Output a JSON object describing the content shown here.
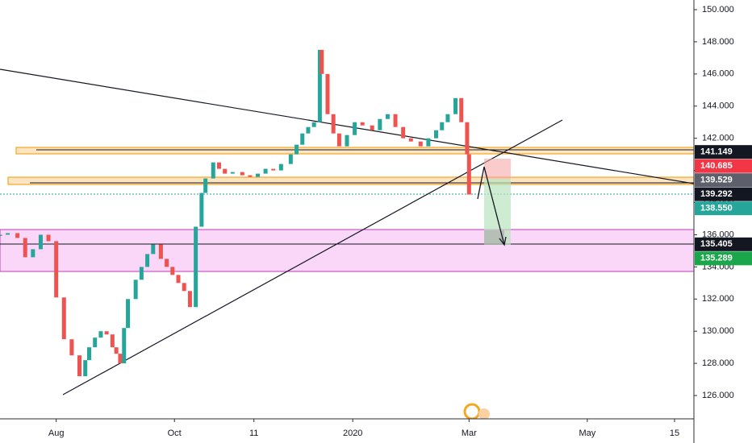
{
  "chart_data": {
    "type": "candlestick",
    "x": [
      -29,
      -25,
      -20,
      -16,
      -12,
      -8,
      -4,
      0,
      4,
      8,
      12,
      15,
      17,
      20,
      23,
      26,
      29,
      31,
      33,
      35,
      37,
      41,
      44,
      47,
      50,
      54,
      57,
      60,
      63,
      66,
      69,
      72,
      75,
      77,
      81,
      84,
      87,
      91,
      96,
      100,
      104,
      108,
      112,
      116,
      121,
      124,
      127,
      130,
      133,
      136,
      137,
      140,
      143,
      146,
      150,
      154,
      158,
      163,
      167,
      171,
      175,
      179,
      183,
      188,
      192,
      196,
      199,
      202,
      206,
      209,
      212,
      213
    ],
    "values": [
      136.0,
      136.1,
      135.8,
      134.6,
      135.1,
      136.0,
      135.6,
      132.1,
      129.5,
      128.5,
      127.2,
      128.2,
      129.0,
      129.6,
      130.0,
      129.8,
      129.0,
      128.6,
      128.0,
      130.2,
      132.0,
      133.2,
      134.0,
      134.8,
      135.4,
      134.5,
      134.0,
      133.5,
      133.0,
      132.5,
      131.5,
      136.5,
      138.6,
      139.5,
      140.5,
      140.1,
      139.8,
      139.9,
      139.7,
      139.6,
      139.8,
      140.1,
      140.0,
      140.4,
      141.0,
      141.6,
      142.3,
      142.7,
      143.0,
      147.5,
      146.0,
      143.5,
      142.3,
      141.5,
      142.2,
      143.0,
      142.8,
      142.5,
      143.2,
      143.5,
      142.7,
      142.0,
      141.8,
      141.5,
      142.0,
      142.5,
      143.0,
      143.5,
      144.5,
      143.0,
      141.0,
      138.5
    ],
    "xlim": [
      -29,
      329
    ],
    "xticks": [
      {
        "value": 0,
        "label": "Aug"
      },
      {
        "value": 61,
        "label": "Oct"
      },
      {
        "value": 102,
        "label": "11"
      },
      {
        "value": 153,
        "label": "2020"
      },
      {
        "value": 213,
        "label": "Mar"
      },
      {
        "value": 274,
        "label": "May"
      },
      {
        "value": 319,
        "label": "15"
      }
    ],
    "ylim": [
      124.55,
      150.6
    ],
    "yticks": [
      {
        "value": 126,
        "label": "126.000"
      },
      {
        "value": 128,
        "label": "128.000"
      },
      {
        "value": 130,
        "label": "130.000"
      },
      {
        "value": 132,
        "label": "132.000"
      },
      {
        "value": 134,
        "label": "134.000"
      },
      {
        "value": 136,
        "label": "136.000"
      },
      {
        "value": 138,
        "label": "138.000"
      },
      {
        "value": 140,
        "label": "140.000"
      },
      {
        "value": 142,
        "label": "142.000"
      },
      {
        "value": 144,
        "label": "144.000"
      },
      {
        "value": 146,
        "label": "146.000"
      },
      {
        "value": 148,
        "label": "148.000"
      },
      {
        "value": 150,
        "label": "150.000"
      }
    ],
    "up_color": "#26a69a",
    "down_color": "#ef5350",
    "price_labels": [
      {
        "value": 141.149,
        "label": "141.149",
        "color": "#131722"
      },
      {
        "value": 140.685,
        "label": "140.685",
        "color": "#f23645"
      },
      {
        "value": 139.529,
        "label": "139.529",
        "color": "#5d606b"
      },
      {
        "value": 139.292,
        "label": "139.292",
        "color": "#131722"
      },
      {
        "value": 138.55,
        "label": "138.550",
        "color": "#26a69a"
      },
      {
        "value": 135.405,
        "label": "135.405",
        "color": "#131722"
      },
      {
        "value": 135.289,
        "label": "135.289",
        "color": "#1aa64a"
      }
    ]
  }
}
